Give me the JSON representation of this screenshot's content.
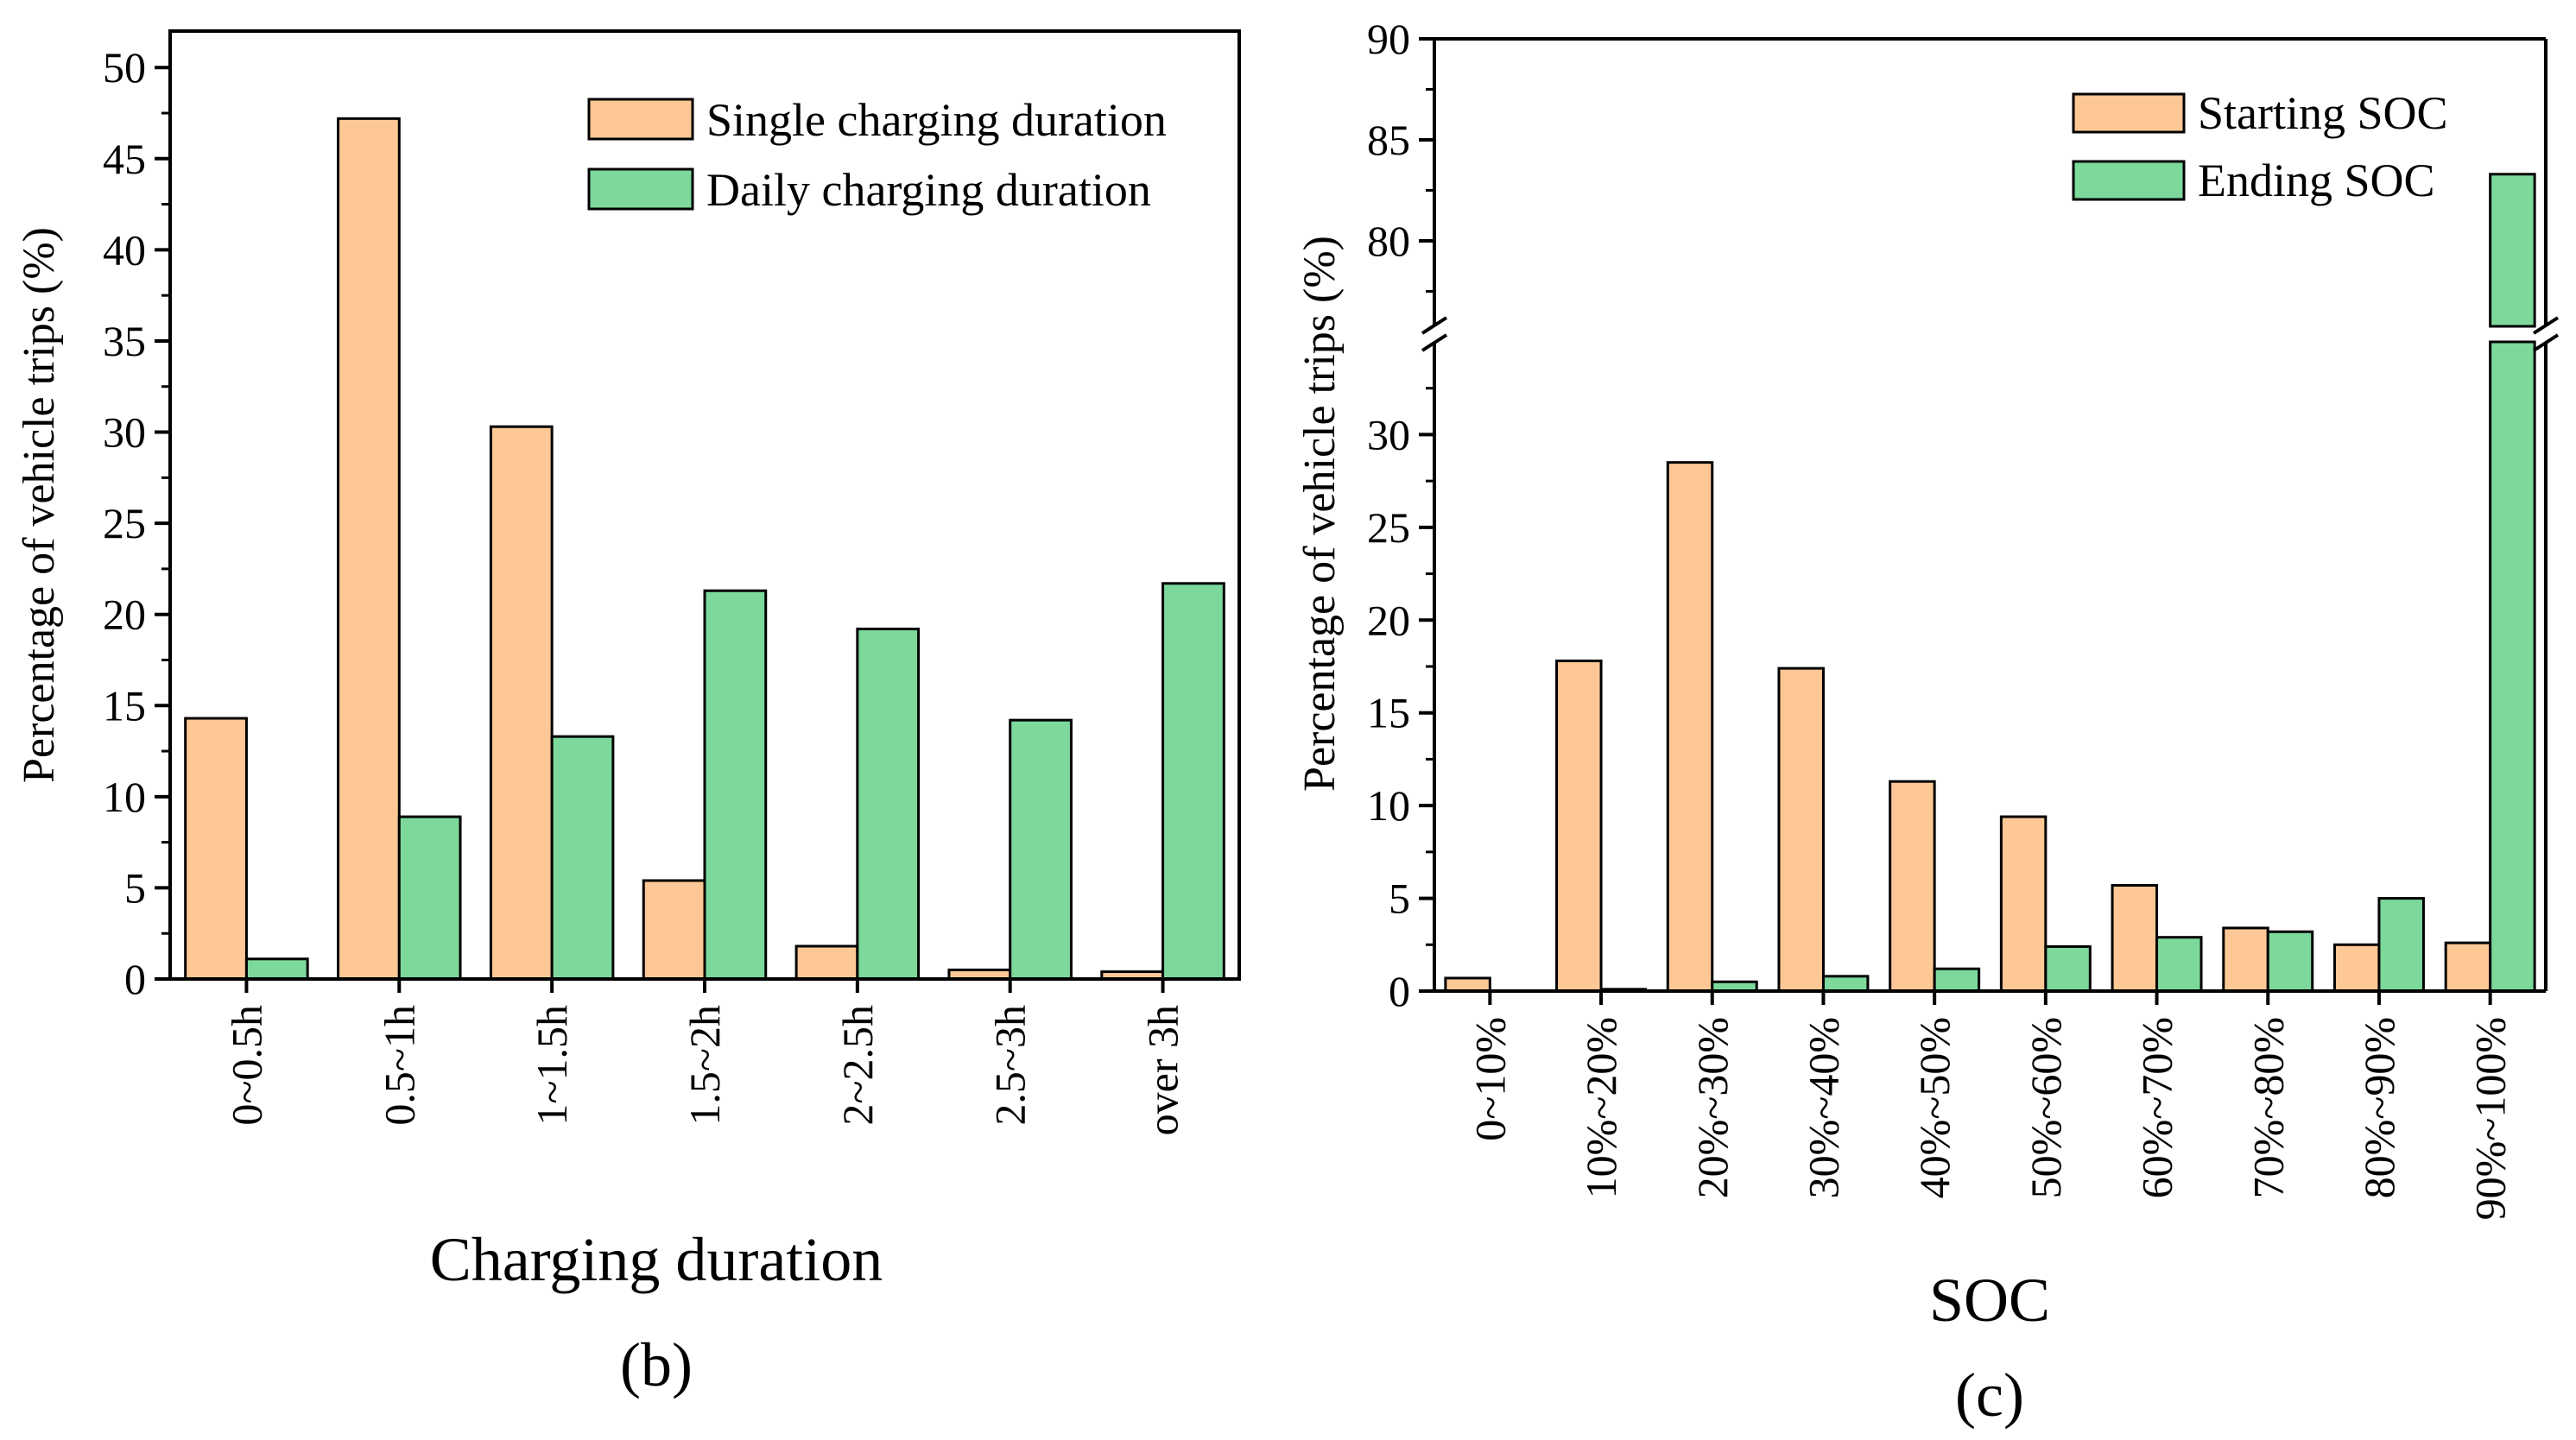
{
  "colors": {
    "starting": "#fdc895",
    "ending": "#7dd89c",
    "edge": "#000000"
  },
  "chart_data": [
    {
      "id": "b",
      "type": "bar",
      "panel_label": "(b)",
      "xlabel": "Charging duration",
      "ylabel": "Percentage of vehicle trips (%)",
      "ylim": [
        0,
        52
      ],
      "yticks": [
        "0",
        "5",
        "10",
        "15",
        "20",
        "25",
        "30",
        "35",
        "40",
        "45",
        "50"
      ],
      "categories": [
        "0~0.5h",
        "0.5~1h",
        "1~1.5h",
        "1.5~2h",
        "2~2.5h",
        "2.5~3h",
        "over 3h"
      ],
      "series": [
        {
          "name": "Single charging duration",
          "values": [
            14.3,
            47.2,
            30.3,
            5.4,
            1.8,
            0.5,
            0.4
          ]
        },
        {
          "name": "Daily charging duration",
          "values": [
            1.1,
            8.9,
            13.3,
            21.3,
            19.2,
            14.2,
            21.7
          ]
        }
      ],
      "legend_position": "top-right"
    },
    {
      "id": "c",
      "type": "bar",
      "panel_label": "(c)",
      "xlabel": "SOC",
      "ylabel": "Percentage of vehicle trips (%)",
      "y_break": {
        "lower_range": [
          0,
          35
        ],
        "upper_range": [
          75,
          90
        ]
      },
      "yticks_lower": [
        "0",
        "5",
        "10",
        "15",
        "20",
        "25",
        "30"
      ],
      "yticks_upper": [
        "80",
        "85",
        "90"
      ],
      "categories": [
        "0~10%",
        "10%~20%",
        "20%~30%",
        "30%~40%",
        "40%~50%",
        "50%~60%",
        "60%~70%",
        "70%~80%",
        "80%~90%",
        "90%~100%"
      ],
      "series": [
        {
          "name": "Starting SOC",
          "values": [
            0.7,
            17.8,
            28.5,
            17.4,
            11.3,
            9.4,
            5.7,
            3.4,
            2.5,
            2.6
          ]
        },
        {
          "name": "Ending SOC",
          "values": [
            0.0,
            0.1,
            0.5,
            0.8,
            1.2,
            2.4,
            2.9,
            3.2,
            5.0,
            83.3
          ]
        }
      ],
      "legend_position": "top-right"
    }
  ]
}
